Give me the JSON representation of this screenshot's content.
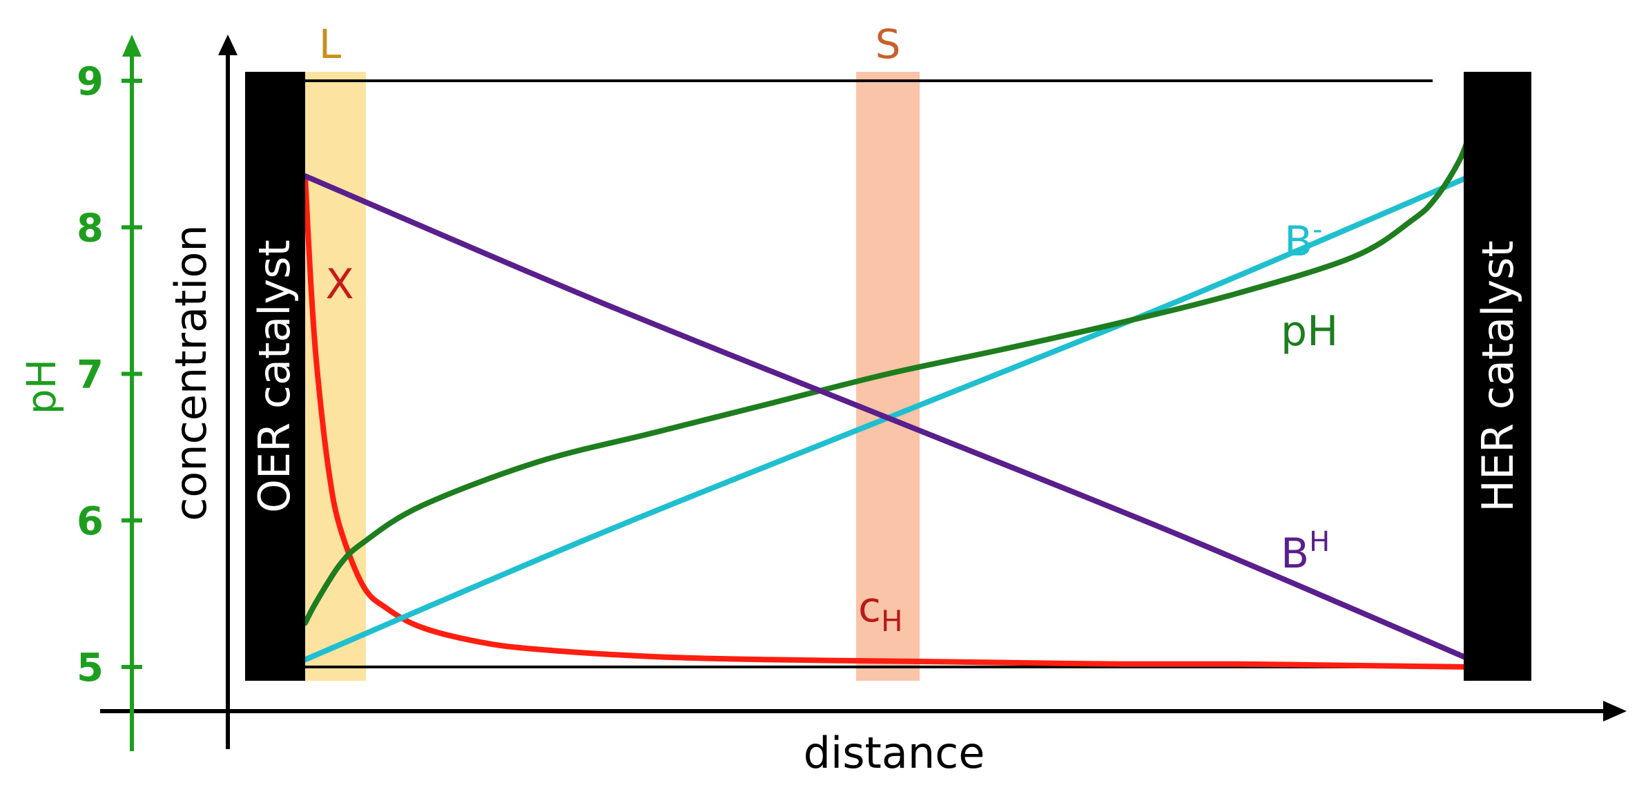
{
  "chart_data": {
    "type": "line",
    "title": "",
    "xlabel": "distance",
    "ylabel": "concentration",
    "secondary_ylabel": "pH",
    "secondary_ylim": [
      5,
      9
    ],
    "secondary_yticks": [
      "5",
      "6",
      "7",
      "8",
      "9"
    ],
    "x_range": [
      0,
      1
    ],
    "grid": false,
    "electrodes": {
      "left": "OER catalyst",
      "right": "HER catalyst"
    },
    "regions": [
      {
        "label": "L",
        "color": "#fde3a0",
        "label_color": "#c8901c"
      },
      {
        "label": "S",
        "color": "#f9c4a8",
        "label_color": "#c8602a"
      }
    ],
    "series": [
      {
        "name": "B-",
        "label_main": "B",
        "label_sup": "-",
        "color": "#1fbfd0",
        "axis": "pH",
        "x": [
          0,
          0.25,
          0.5,
          0.75,
          1
        ],
        "values": [
          5.05,
          5.9,
          6.7,
          7.5,
          8.35
        ]
      },
      {
        "name": "pH",
        "label_main": "pH",
        "color": "#1e7d1e",
        "axis": "pH",
        "x": [
          0,
          0.01,
          0.03,
          0.05,
          0.1,
          0.2,
          0.3,
          0.4,
          0.5,
          0.6,
          0.7,
          0.8,
          0.9,
          0.95,
          0.97,
          0.99,
          1
        ],
        "values": [
          5.3,
          5.45,
          5.7,
          5.85,
          6.1,
          6.4,
          6.6,
          6.8,
          7.0,
          7.17,
          7.35,
          7.55,
          7.8,
          8.05,
          8.2,
          8.45,
          8.65
        ]
      },
      {
        "name": "BH",
        "label_main": "B",
        "label_sup": "H",
        "color": "#5a1f8c",
        "axis": "pH",
        "x": [
          0,
          0.25,
          0.5,
          0.75,
          1
        ],
        "values": [
          8.35,
          7.5,
          6.7,
          5.9,
          5.05
        ]
      },
      {
        "name": "cH",
        "label_main": "c",
        "label_sub": "H",
        "color": "#ff1e10",
        "axis": "pH",
        "x": [
          0,
          0.005,
          0.01,
          0.02,
          0.03,
          0.05,
          0.07,
          0.1,
          0.15,
          0.2,
          0.3,
          0.4,
          0.5,
          0.6,
          0.7,
          0.8,
          0.9,
          1
        ],
        "values": [
          8.35,
          7.6,
          7.05,
          6.35,
          5.95,
          5.55,
          5.4,
          5.27,
          5.17,
          5.12,
          5.07,
          5.05,
          5.04,
          5.03,
          5.02,
          5.02,
          5.01,
          5.0
        ]
      }
    ],
    "annotations": [
      {
        "text": "X",
        "color": "#c81a1a"
      }
    ]
  },
  "colors": {
    "axis": "#000000",
    "ph_axis": "#1e9e1e",
    "electrode": "#000000"
  }
}
